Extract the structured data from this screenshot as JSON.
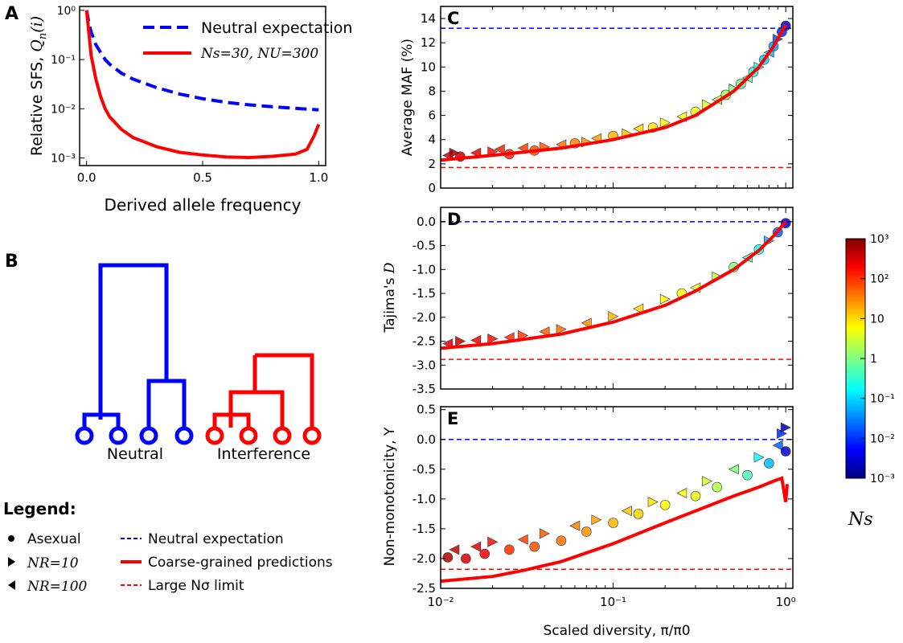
{
  "panels": {
    "A": {
      "letter": "A"
    },
    "B": {
      "letter": "B"
    },
    "C": {
      "letter": "C"
    },
    "D": {
      "letter": "D"
    },
    "E": {
      "letter": "E"
    }
  },
  "tree": {
    "left_label": "Neutral",
    "right_label": "Interference",
    "colors": {
      "neutral": "#0000ff",
      "interference": "#ff0000"
    }
  },
  "legend": {
    "title": "Legend:",
    "items": [
      {
        "marker": "circle",
        "text": "Asexual"
      },
      {
        "marker": "triangle-right",
        "text": "NR=10"
      },
      {
        "marker": "triangle-left",
        "text": "NR=100"
      },
      {
        "line": "dashed-blue",
        "text": "Neutral expectation"
      },
      {
        "line": "solid-red",
        "text": "Coarse-grained predictions"
      },
      {
        "line": "dashed-red",
        "text": "Large Nσ limit"
      }
    ]
  },
  "colorbar": {
    "label": "Ns",
    "ticks": [
      "10³",
      "10²",
      "10",
      "1",
      "10⁻¹",
      "10⁻²",
      "10⁻³"
    ]
  },
  "chart_data": [
    {
      "id": "A",
      "type": "line",
      "xlabel": "Derived allele frequency",
      "ylabel": "Relative SFS, Qn(i)",
      "xlim": [
        -0.03,
        1.03
      ],
      "ylim": [
        0.0007,
        1.2
      ],
      "yscale": "log",
      "xticks": [
        0.0,
        0.5,
        1.0
      ],
      "xtick_labels": [
        "0.0",
        "0.5",
        "1.0"
      ],
      "yticks": [
        0.001,
        0.01,
        0.1,
        1
      ],
      "ytick_labels": [
        "10⁻³",
        "10⁻²",
        "10⁻¹",
        "10⁰"
      ],
      "legend_position": "top-right",
      "series": [
        {
          "name": "Neutral expectation",
          "style": "dashed",
          "color": "#0000ff",
          "x": [
            0.0,
            0.01,
            0.02,
            0.04,
            0.06,
            0.08,
            0.1,
            0.15,
            0.2,
            0.3,
            0.4,
            0.5,
            0.6,
            0.7,
            0.8,
            0.9,
            1.0
          ],
          "y": [
            1.0,
            0.55,
            0.36,
            0.2,
            0.14,
            0.1,
            0.08,
            0.053,
            0.04,
            0.027,
            0.02,
            0.016,
            0.0135,
            0.012,
            0.011,
            0.0102,
            0.0095
          ]
        },
        {
          "name": "Ns=30, NU=300",
          "style": "solid",
          "color": "#ff0000",
          "x": [
            0.0,
            0.01,
            0.02,
            0.04,
            0.06,
            0.08,
            0.1,
            0.15,
            0.2,
            0.3,
            0.4,
            0.5,
            0.6,
            0.7,
            0.8,
            0.9,
            0.95,
            0.98,
            1.0
          ],
          "y": [
            1.0,
            0.35,
            0.12,
            0.04,
            0.018,
            0.01,
            0.0068,
            0.0038,
            0.0026,
            0.0017,
            0.0013,
            0.00115,
            0.00105,
            0.00102,
            0.00108,
            0.0012,
            0.0015,
            0.0028,
            0.0048
          ]
        }
      ]
    },
    {
      "id": "C",
      "type": "scatter",
      "ylabel": "Average MAF (%)",
      "xscale": "log",
      "xlim": [
        0.01,
        1.1
      ],
      "ylim": [
        0,
        15
      ],
      "yticks": [
        0,
        2,
        4,
        6,
        8,
        10,
        12,
        14
      ],
      "ref_lines": [
        {
          "y": 13.2,
          "color": "#0000ff",
          "style": "dashed"
        },
        {
          "y": 1.7,
          "color": "#ff0000",
          "style": "dashed"
        }
      ],
      "prediction": {
        "x": [
          0.01,
          0.02,
          0.05,
          0.1,
          0.2,
          0.3,
          0.5,
          0.7,
          0.85,
          1.0
        ],
        "y": [
          2.3,
          2.7,
          3.3,
          4.0,
          5.0,
          6.0,
          8.0,
          10.0,
          11.7,
          13.5
        ]
      },
      "points": [
        {
          "x": 0.011,
          "y": 2.7,
          "ns": 300,
          "m": "tl"
        },
        {
          "x": 0.012,
          "y": 2.9,
          "ns": 500,
          "m": "tr"
        },
        {
          "x": 0.013,
          "y": 2.6,
          "ns": 400,
          "m": "c"
        },
        {
          "x": 0.016,
          "y": 2.9,
          "ns": 200,
          "m": "tl"
        },
        {
          "x": 0.02,
          "y": 3.0,
          "ns": 150,
          "m": "tr"
        },
        {
          "x": 0.022,
          "y": 3.2,
          "ns": 120,
          "m": "tl"
        },
        {
          "x": 0.025,
          "y": 2.8,
          "ns": 100,
          "m": "c"
        },
        {
          "x": 0.03,
          "y": 3.3,
          "ns": 80,
          "m": "tl"
        },
        {
          "x": 0.035,
          "y": 3.1,
          "ns": 60,
          "m": "c"
        },
        {
          "x": 0.04,
          "y": 3.4,
          "ns": 50,
          "m": "tr"
        },
        {
          "x": 0.05,
          "y": 3.6,
          "ns": 40,
          "m": "tl"
        },
        {
          "x": 0.06,
          "y": 3.7,
          "ns": 30,
          "m": "c"
        },
        {
          "x": 0.07,
          "y": 3.8,
          "ns": 25,
          "m": "tr"
        },
        {
          "x": 0.08,
          "y": 4.1,
          "ns": 20,
          "m": "tl"
        },
        {
          "x": 0.1,
          "y": 4.3,
          "ns": 15,
          "m": "c"
        },
        {
          "x": 0.12,
          "y": 4.5,
          "ns": 12,
          "m": "tr"
        },
        {
          "x": 0.14,
          "y": 4.9,
          "ns": 10,
          "m": "tl"
        },
        {
          "x": 0.17,
          "y": 5.0,
          "ns": 8,
          "m": "c"
        },
        {
          "x": 0.2,
          "y": 5.4,
          "ns": 6,
          "m": "tr"
        },
        {
          "x": 0.25,
          "y": 5.9,
          "ns": 5,
          "m": "tl"
        },
        {
          "x": 0.3,
          "y": 6.3,
          "ns": 4,
          "m": "c"
        },
        {
          "x": 0.35,
          "y": 6.9,
          "ns": 3,
          "m": "tr"
        },
        {
          "x": 0.4,
          "y": 7.3,
          "ns": 2,
          "m": "tl"
        },
        {
          "x": 0.45,
          "y": 7.7,
          "ns": 1.5,
          "m": "c"
        },
        {
          "x": 0.5,
          "y": 8.2,
          "ns": 1,
          "m": "tr"
        },
        {
          "x": 0.55,
          "y": 8.6,
          "ns": 0.7,
          "m": "c"
        },
        {
          "x": 0.6,
          "y": 9.1,
          "ns": 0.5,
          "m": "tl"
        },
        {
          "x": 0.65,
          "y": 9.6,
          "ns": 0.3,
          "m": "c"
        },
        {
          "x": 0.7,
          "y": 10.0,
          "ns": 0.2,
          "m": "tr"
        },
        {
          "x": 0.75,
          "y": 10.6,
          "ns": 0.1,
          "m": "c"
        },
        {
          "x": 0.8,
          "y": 11.2,
          "ns": 0.07,
          "m": "tl"
        },
        {
          "x": 0.85,
          "y": 11.7,
          "ns": 0.05,
          "m": "c"
        },
        {
          "x": 0.9,
          "y": 12.3,
          "ns": 0.02,
          "m": "tr"
        },
        {
          "x": 0.95,
          "y": 12.9,
          "ns": 0.01,
          "m": "c"
        },
        {
          "x": 1.0,
          "y": 13.4,
          "ns": 0.003,
          "m": "c"
        }
      ]
    },
    {
      "id": "D",
      "type": "scatter",
      "ylabel": "Tajima's D",
      "xscale": "log",
      "xlim": [
        0.01,
        1.1
      ],
      "ylim": [
        -3.5,
        0.3
      ],
      "yticks": [
        -3.5,
        -3.0,
        -2.5,
        -2.0,
        -1.5,
        -1.0,
        -0.5,
        0.0
      ],
      "ref_lines": [
        {
          "y": 0.0,
          "color": "#0000ff",
          "style": "dashed"
        },
        {
          "y": -2.88,
          "color": "#ff0000",
          "style": "dashed"
        }
      ],
      "prediction": {
        "x": [
          0.01,
          0.02,
          0.05,
          0.1,
          0.2,
          0.3,
          0.5,
          0.7,
          0.85,
          1.0
        ],
        "y": [
          -2.65,
          -2.55,
          -2.35,
          -2.1,
          -1.75,
          -1.45,
          -1.0,
          -0.6,
          -0.3,
          0.0
        ]
      },
      "points": [
        {
          "x": 0.011,
          "y": -2.55,
          "ns": 300,
          "m": "tl"
        },
        {
          "x": 0.013,
          "y": -2.5,
          "ns": 400,
          "m": "tr"
        },
        {
          "x": 0.016,
          "y": -2.48,
          "ns": 200,
          "m": "tl"
        },
        {
          "x": 0.02,
          "y": -2.45,
          "ns": 150,
          "m": "tr"
        },
        {
          "x": 0.025,
          "y": -2.42,
          "ns": 100,
          "m": "tl"
        },
        {
          "x": 0.03,
          "y": -2.38,
          "ns": 80,
          "m": "tr"
        },
        {
          "x": 0.04,
          "y": -2.3,
          "ns": 50,
          "m": "tl"
        },
        {
          "x": 0.05,
          "y": -2.25,
          "ns": 40,
          "m": "tr"
        },
        {
          "x": 0.07,
          "y": -2.12,
          "ns": 25,
          "m": "tl"
        },
        {
          "x": 0.1,
          "y": -1.98,
          "ns": 15,
          "m": "tr"
        },
        {
          "x": 0.14,
          "y": -1.82,
          "ns": 10,
          "m": "tl"
        },
        {
          "x": 0.2,
          "y": -1.62,
          "ns": 6,
          "m": "tr"
        },
        {
          "x": 0.25,
          "y": -1.5,
          "ns": 5,
          "m": "c"
        },
        {
          "x": 0.3,
          "y": -1.38,
          "ns": 4,
          "m": "tl"
        },
        {
          "x": 0.4,
          "y": -1.15,
          "ns": 2,
          "m": "tr"
        },
        {
          "x": 0.5,
          "y": -0.95,
          "ns": 1,
          "m": "c"
        },
        {
          "x": 0.6,
          "y": -0.75,
          "ns": 0.5,
          "m": "tl"
        },
        {
          "x": 0.7,
          "y": -0.58,
          "ns": 0.2,
          "m": "c"
        },
        {
          "x": 0.8,
          "y": -0.4,
          "ns": 0.07,
          "m": "tr"
        },
        {
          "x": 0.9,
          "y": -0.22,
          "ns": 0.02,
          "m": "c"
        },
        {
          "x": 1.0,
          "y": -0.03,
          "ns": 0.003,
          "m": "c"
        }
      ]
    },
    {
      "id": "E",
      "type": "scatter",
      "xlabel": "Scaled diversity, π/π0",
      "ylabel": "Non-monotonicity, Υ",
      "xscale": "log",
      "xlim": [
        0.01,
        1.1
      ],
      "ylim": [
        -2.5,
        0.55
      ],
      "xticks": [
        0.01,
        0.1,
        1
      ],
      "xtick_labels": [
        "10⁻²",
        "10⁻¹",
        "10⁰"
      ],
      "yticks": [
        -2.5,
        -2.0,
        -1.5,
        -1.0,
        -0.5,
        0.0,
        0.5
      ],
      "ref_lines": [
        {
          "y": 0.0,
          "color": "#0000ff",
          "style": "dashed"
        },
        {
          "y": -2.18,
          "color": "#ff0000",
          "style": "dashed"
        }
      ],
      "prediction": {
        "x": [
          0.01,
          0.02,
          0.03,
          0.05,
          0.1,
          0.2,
          0.3,
          0.5,
          0.7,
          0.85,
          0.95,
          1.0,
          1.02
        ],
        "y": [
          -2.38,
          -2.3,
          -2.2,
          -2.05,
          -1.75,
          -1.4,
          -1.2,
          -0.95,
          -0.8,
          -0.7,
          -0.65,
          -1.05,
          -0.75
        ]
      },
      "points": [
        {
          "x": 0.011,
          "y": -1.98,
          "ns": 500,
          "m": "c"
        },
        {
          "x": 0.012,
          "y": -1.85,
          "ns": 400,
          "m": "tl"
        },
        {
          "x": 0.014,
          "y": -2.0,
          "ns": 300,
          "m": "c"
        },
        {
          "x": 0.016,
          "y": -1.8,
          "ns": 250,
          "m": "tl"
        },
        {
          "x": 0.018,
          "y": -1.92,
          "ns": 200,
          "m": "c"
        },
        {
          "x": 0.02,
          "y": -1.72,
          "ns": 150,
          "m": "tr"
        },
        {
          "x": 0.025,
          "y": -1.85,
          "ns": 100,
          "m": "c"
        },
        {
          "x": 0.03,
          "y": -1.68,
          "ns": 80,
          "m": "tl"
        },
        {
          "x": 0.035,
          "y": -1.8,
          "ns": 60,
          "m": "c"
        },
        {
          "x": 0.04,
          "y": -1.58,
          "ns": 50,
          "m": "tr"
        },
        {
          "x": 0.05,
          "y": -1.7,
          "ns": 40,
          "m": "c"
        },
        {
          "x": 0.06,
          "y": -1.45,
          "ns": 30,
          "m": "tl"
        },
        {
          "x": 0.07,
          "y": -1.55,
          "ns": 25,
          "m": "c"
        },
        {
          "x": 0.08,
          "y": -1.35,
          "ns": 20,
          "m": "tr"
        },
        {
          "x": 0.1,
          "y": -1.4,
          "ns": 15,
          "m": "c"
        },
        {
          "x": 0.12,
          "y": -1.2,
          "ns": 12,
          "m": "tl"
        },
        {
          "x": 0.14,
          "y": -1.25,
          "ns": 10,
          "m": "c"
        },
        {
          "x": 0.17,
          "y": -1.05,
          "ns": 8,
          "m": "tr"
        },
        {
          "x": 0.2,
          "y": -1.1,
          "ns": 6,
          "m": "c"
        },
        {
          "x": 0.25,
          "y": -0.9,
          "ns": 5,
          "m": "tl"
        },
        {
          "x": 0.3,
          "y": -0.95,
          "ns": 4,
          "m": "c"
        },
        {
          "x": 0.35,
          "y": -0.7,
          "ns": 3,
          "m": "tr"
        },
        {
          "x": 0.4,
          "y": -0.8,
          "ns": 2,
          "m": "c"
        },
        {
          "x": 0.5,
          "y": -0.5,
          "ns": 1,
          "m": "tl"
        },
        {
          "x": 0.6,
          "y": -0.6,
          "ns": 0.5,
          "m": "c"
        },
        {
          "x": 0.7,
          "y": -0.3,
          "ns": 0.2,
          "m": "tr"
        },
        {
          "x": 0.8,
          "y": -0.4,
          "ns": 0.07,
          "m": "c"
        },
        {
          "x": 0.9,
          "y": -0.1,
          "ns": 0.02,
          "m": "tl"
        },
        {
          "x": 0.95,
          "y": 0.1,
          "ns": 0.01,
          "m": "tr"
        },
        {
          "x": 1.0,
          "y": -0.2,
          "ns": 0.003,
          "m": "c"
        },
        {
          "x": 1.0,
          "y": 0.2,
          "ns": 0.002,
          "m": "tr"
        }
      ]
    }
  ]
}
